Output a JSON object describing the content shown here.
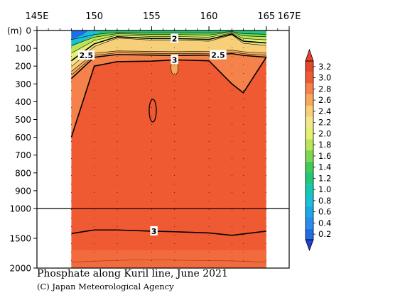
{
  "chart_data": {
    "type": "heatmap",
    "title": "Phosphate along Kuril line, June 2021",
    "credit": "(C) Japan Meteorological Agency",
    "x_axis": {
      "ticks": [
        "145E",
        "150",
        "155",
        "160",
        "165",
        "167E"
      ],
      "tick_values": [
        145,
        150,
        155,
        160,
        165,
        167
      ],
      "range": [
        145,
        167
      ],
      "data_extent": [
        148,
        165
      ]
    },
    "y_axis": {
      "unit_label": "(m)",
      "upper_ticks": [
        0,
        100,
        200,
        300,
        400,
        500,
        600,
        700,
        800,
        900,
        1000
      ],
      "lower_ticks": [
        1500,
        2000
      ],
      "upper_range": [
        0,
        1000
      ],
      "lower_range": [
        1000,
        2000
      ],
      "direction": "down"
    },
    "colorbar": {
      "labels": [
        "0.2",
        "0.4",
        "0.6",
        "0.8",
        "1.0",
        "1.2",
        "1.4",
        "1.6",
        "1.8",
        "2.0",
        "2.2",
        "2.4",
        "2.6",
        "2.8",
        "3.0",
        "3.2"
      ],
      "colors": [
        "#1e6ee8",
        "#2b8cf0",
        "#1aa8e8",
        "#18c0d8",
        "#15c8b0",
        "#20c87a",
        "#40cc55",
        "#7cd850",
        "#b8e658",
        "#e6f070",
        "#f2e88a",
        "#f6cf78",
        "#f7a85a",
        "#f5824a",
        "#f05a33",
        "#e8462a"
      ]
    },
    "contour_labels": [
      {
        "value": "2",
        "lon": 157.0,
        "depth": 45
      },
      {
        "value": "2.5",
        "lon": 149.3,
        "depth": 140
      },
      {
        "value": "3",
        "lon": 157.0,
        "depth": 165
      },
      {
        "value": "2.5",
        "lon": 160.8,
        "depth": 138
      },
      {
        "value": "3",
        "lon": 155.2,
        "depth": 1380
      }
    ],
    "depth_profile": {
      "lon": [
        148,
        150,
        152,
        155,
        157,
        160,
        162,
        163,
        165
      ],
      "c2_depth": [
        170,
        75,
        35,
        45,
        45,
        50,
        20,
        60,
        70
      ],
      "c25_depth": [
        270,
        150,
        135,
        138,
        140,
        138,
        130,
        140,
        150
      ],
      "c3_depth": [
        600,
        200,
        175,
        172,
        165,
        170,
        300,
        350,
        150
      ]
    }
  }
}
